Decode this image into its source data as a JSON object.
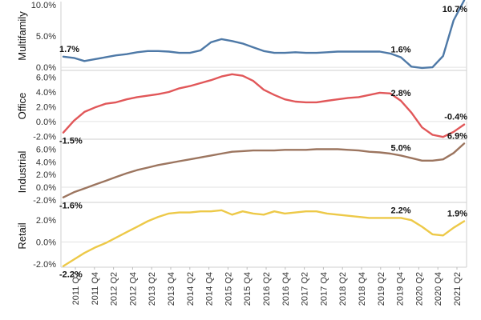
{
  "chart_data": {
    "type": "line",
    "x_labels": [
      "2011 Q2",
      "2011 Q4",
      "2012 Q2",
      "2012 Q4",
      "2013 Q2",
      "2013 Q4",
      "2014 Q2",
      "2014 Q4",
      "2015 Q2",
      "2015 Q4",
      "2016 Q2",
      "2016 Q4",
      "2017 Q2",
      "2017 Q4",
      "2018 Q2",
      "2018 Q4",
      "2019 Q2",
      "2019 Q4",
      "2020 Q2",
      "2020 Q4",
      "2021 Q2"
    ],
    "panels": [
      {
        "name": "Multifamily",
        "color": "#4e79a7",
        "ylim": [
          -0.5,
          10.5
        ],
        "yticks": [
          0,
          5,
          10
        ],
        "tick_labels": [
          "0.0%",
          "5.0%",
          "10.0%"
        ],
        "values": [
          1.7,
          1.5,
          1.0,
          1.3,
          1.6,
          1.9,
          2.1,
          2.4,
          2.6,
          2.6,
          2.5,
          2.3,
          2.3,
          2.7,
          4.0,
          4.5,
          4.2,
          3.8,
          3.2,
          2.6,
          2.3,
          2.3,
          2.4,
          2.3,
          2.3,
          2.4,
          2.5,
          2.5,
          2.5,
          2.5,
          2.5,
          2.2,
          1.6,
          0.1,
          -0.1,
          0.0,
          1.8,
          7.5,
          10.7
        ],
        "labels": [
          {
            "index": 0,
            "text": "1.7%"
          },
          {
            "index": 32,
            "text": "1.6%"
          },
          {
            "index": 38,
            "text": "10.7%"
          }
        ]
      },
      {
        "name": "Office",
        "color": "#e15759",
        "ylim": [
          -2.4,
          6.6
        ],
        "yticks": [
          -2,
          0,
          2,
          4,
          6
        ],
        "tick_labels": [
          "-2.0%",
          "0.0%",
          "2.0%",
          "4.0%",
          "6.0%"
        ],
        "values": [
          -1.5,
          0.1,
          1.3,
          1.9,
          2.4,
          2.6,
          3.0,
          3.3,
          3.5,
          3.7,
          4.0,
          4.5,
          4.8,
          5.2,
          5.6,
          6.1,
          6.4,
          6.2,
          5.5,
          4.3,
          3.6,
          3.0,
          2.7,
          2.6,
          2.6,
          2.8,
          3.0,
          3.2,
          3.3,
          3.6,
          3.9,
          3.8,
          2.8,
          1.2,
          -0.8,
          -1.8,
          -2.1,
          -1.4,
          -0.4
        ],
        "labels": [
          {
            "index": 0,
            "text": "-1.5%"
          },
          {
            "index": 32,
            "text": "2.8%"
          },
          {
            "index": 38,
            "text": "-0.4%"
          }
        ]
      },
      {
        "name": "Industrial",
        "color": "#9c755f",
        "ylim": [
          -2.4,
          7.2
        ],
        "yticks": [
          -2,
          0,
          2,
          4,
          6
        ],
        "tick_labels": [
          "-2.0%",
          "0.0%",
          "2.0%",
          "4.0%",
          "6.0%"
        ],
        "values": [
          -1.6,
          -0.8,
          -0.2,
          0.4,
          1.0,
          1.6,
          2.2,
          2.7,
          3.1,
          3.5,
          3.8,
          4.1,
          4.4,
          4.7,
          5.0,
          5.3,
          5.6,
          5.7,
          5.8,
          5.8,
          5.8,
          5.9,
          5.9,
          5.9,
          6.0,
          6.0,
          6.0,
          5.9,
          5.8,
          5.6,
          5.5,
          5.3,
          5.0,
          4.6,
          4.2,
          4.2,
          4.4,
          5.4,
          6.9
        ],
        "labels": [
          {
            "index": 0,
            "text": "-1.6%"
          },
          {
            "index": 32,
            "text": "5.0%"
          },
          {
            "index": 38,
            "text": "6.9%"
          }
        ]
      },
      {
        "name": "Retail",
        "color": "#edc948",
        "ylim": [
          -2.3,
          3.4
        ],
        "yticks": [
          -2,
          0,
          2
        ],
        "tick_labels": [
          "-2.0%",
          "0.0%",
          "2.0%"
        ],
        "values": [
          -2.2,
          -1.6,
          -1.0,
          -0.5,
          -0.1,
          0.4,
          0.9,
          1.4,
          1.9,
          2.3,
          2.6,
          2.7,
          2.7,
          2.8,
          2.8,
          2.9,
          2.5,
          2.8,
          2.6,
          2.5,
          2.8,
          2.6,
          2.7,
          2.8,
          2.8,
          2.6,
          2.5,
          2.4,
          2.3,
          2.2,
          2.2,
          2.2,
          2.2,
          2.0,
          1.4,
          0.7,
          0.6,
          1.3,
          1.9
        ],
        "labels": [
          {
            "index": 0,
            "text": "-2.2%"
          },
          {
            "index": 32,
            "text": "2.2%"
          },
          {
            "index": 38,
            "text": "1.9%"
          }
        ]
      }
    ]
  }
}
